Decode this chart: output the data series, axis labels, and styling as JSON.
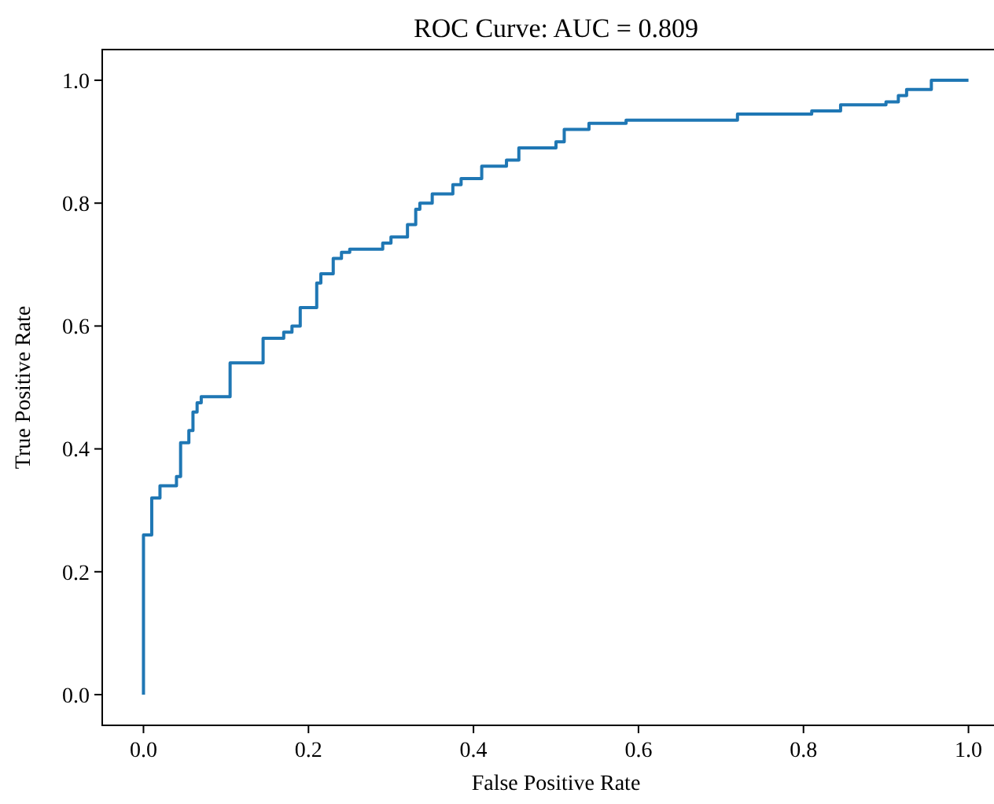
{
  "chart_data": {
    "type": "line",
    "title": "ROC Curve: AUC = 0.809",
    "xlabel": "False Positive Rate",
    "ylabel": "True Positive Rate",
    "xlim": [
      -0.05,
      1.05
    ],
    "ylim": [
      -0.05,
      1.05
    ],
    "xticks": [
      {
        "value": 0,
        "label": "0.0"
      },
      0.2,
      0.4,
      0.6,
      0.8,
      {
        "value": 1,
        "label": "1.0"
      }
    ],
    "yticks": [
      {
        "value": 0,
        "label": "0.0"
      },
      0.2,
      0.4,
      0.6,
      0.8,
      {
        "value": 1,
        "label": "1.0"
      }
    ],
    "grid": false,
    "series": [
      {
        "color": "#1f77b4",
        "x": [
          0,
          0,
          0.01,
          0.01,
          0.02,
          0.02,
          0.04,
          0.04,
          0.045,
          0.045,
          0.055,
          0.055,
          0.06,
          0.06,
          0.065,
          0.065,
          0.07,
          0.07,
          0.105,
          0.105,
          0.145,
          0.145,
          0.17,
          0.17,
          0.18,
          0.18,
          0.19,
          0.19,
          0.21,
          0.21,
          0.215,
          0.215,
          0.23,
          0.23,
          0.24,
          0.24,
          0.25,
          0.25,
          0.29,
          0.29,
          0.3,
          0.3,
          0.32,
          0.32,
          0.33,
          0.33,
          0.335,
          0.335,
          0.35,
          0.35,
          0.375,
          0.375,
          0.385,
          0.385,
          0.41,
          0.41,
          0.44,
          0.44,
          0.455,
          0.455,
          0.5,
          0.5,
          0.51,
          0.51,
          0.54,
          0.54,
          0.585,
          0.585,
          0.72,
          0.72,
          0.81,
          0.81,
          0.845,
          0.845,
          0.9,
          0.9,
          0.915,
          0.915,
          0.925,
          0.925,
          0.955,
          0.955,
          1
        ],
        "values": [
          0,
          0.26,
          0.26,
          0.32,
          0.32,
          0.34,
          0.34,
          0.355,
          0.355,
          0.41,
          0.41,
          0.43,
          0.43,
          0.46,
          0.46,
          0.475,
          0.475,
          0.485,
          0.485,
          0.54,
          0.54,
          0.58,
          0.58,
          0.59,
          0.59,
          0.6,
          0.6,
          0.63,
          0.63,
          0.67,
          0.67,
          0.685,
          0.685,
          0.71,
          0.71,
          0.72,
          0.72,
          0.725,
          0.725,
          0.735,
          0.735,
          0.745,
          0.745,
          0.765,
          0.765,
          0.79,
          0.79,
          0.8,
          0.8,
          0.815,
          0.815,
          0.83,
          0.83,
          0.84,
          0.84,
          0.86,
          0.86,
          0.87,
          0.87,
          0.89,
          0.89,
          0.9,
          0.9,
          0.92,
          0.92,
          0.93,
          0.93,
          0.935,
          0.935,
          0.945,
          0.945,
          0.95,
          0.95,
          0.96,
          0.96,
          0.965,
          0.965,
          0.975,
          0.975,
          0.985,
          0.985,
          1,
          1
        ]
      }
    ]
  }
}
